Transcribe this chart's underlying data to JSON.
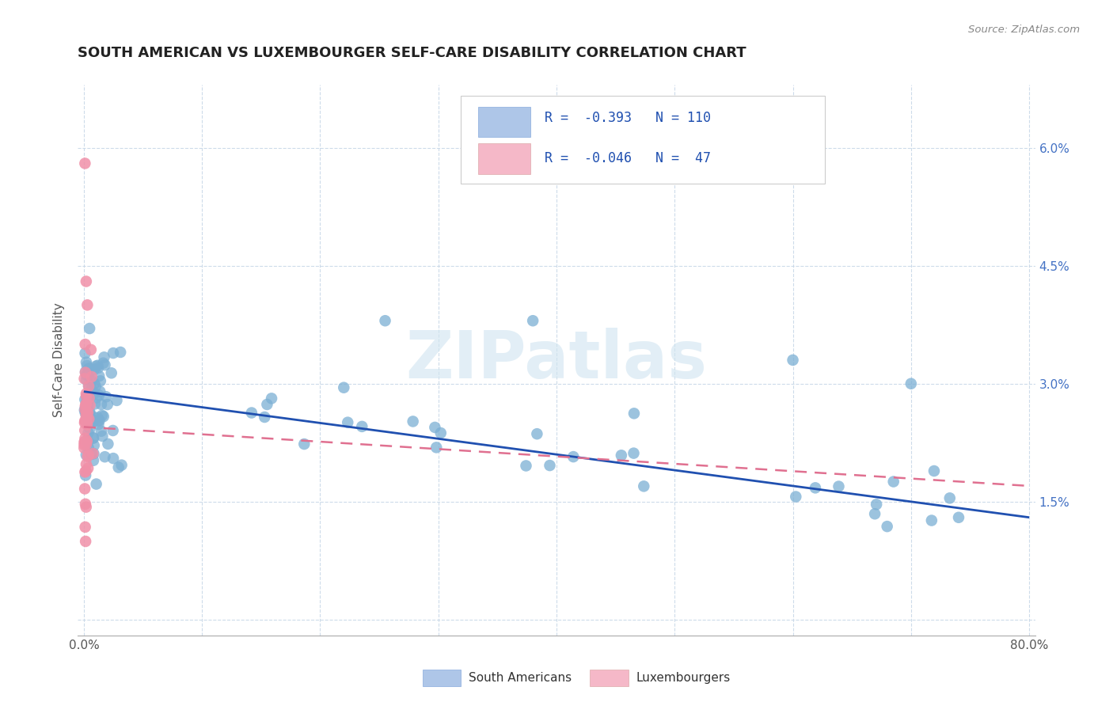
{
  "title": "SOUTH AMERICAN VS LUXEMBOURGER SELF-CARE DISABILITY CORRELATION CHART",
  "source": "Source: ZipAtlas.com",
  "ylabel": "Self-Care Disability",
  "xlim": [
    0.0,
    0.8
  ],
  "ylim": [
    0.0,
    0.065
  ],
  "x_ticks": [
    0.0,
    0.1,
    0.2,
    0.3,
    0.4,
    0.5,
    0.6,
    0.7,
    0.8
  ],
  "x_tick_labels": [
    "0.0%",
    "",
    "",
    "",
    "",
    "",
    "",
    "",
    "80.0%"
  ],
  "y_ticks": [
    0.0,
    0.015,
    0.03,
    0.045,
    0.06
  ],
  "y_tick_labels": [
    "",
    "1.5%",
    "3.0%",
    "4.5%",
    "6.0%"
  ],
  "south_american_color": "#7bafd4",
  "luxembourger_color": "#f090a8",
  "sa_patch_color": "#aec6e8",
  "lux_patch_color": "#f5b8c8",
  "trend_sa_color": "#2050b0",
  "trend_lux_color": "#e07090",
  "grid_color": "#c8d8e8",
  "right_axis_color": "#4472c4",
  "title_color": "#222222",
  "source_color": "#888888",
  "ylabel_color": "#555555",
  "watermark_text": "ZIPatlas",
  "watermark_color": "#d0e4f0",
  "legend_r_n_color": "#2050b0",
  "legend_label1": "R =  -0.393   N = 110",
  "legend_label2": "R =  -0.046   N =  47",
  "bottom_legend_sa": "South Americans",
  "bottom_legend_lux": "Luxembourgers",
  "sa_trend_x": [
    0.0,
    0.8
  ],
  "sa_trend_y": [
    0.029,
    0.013
  ],
  "lux_trend_x": [
    0.0,
    0.8
  ],
  "lux_trend_y": [
    0.0245,
    0.017
  ],
  "random_seed": 99
}
